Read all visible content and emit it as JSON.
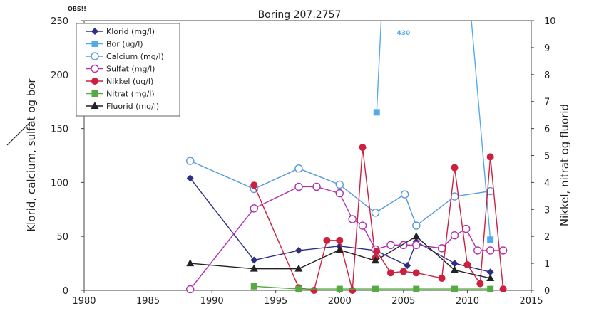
{
  "chart_data": {
    "type": "line",
    "title": "Boring 207.2757",
    "note": "OBS!!",
    "ylabel": "Klorid, calcium, sulfat og bor",
    "y2label": "Nikkel, nitrat og fluorid",
    "xlim": [
      1980,
      2015
    ],
    "ylim": [
      0,
      250
    ],
    "y2lim": [
      0,
      10
    ],
    "xticks": [
      "1980",
      "1985",
      "1990",
      "1995",
      "2000",
      "2005",
      "2010",
      "2015"
    ],
    "yticks": [
      "0",
      "50",
      "100",
      "150",
      "200",
      "250"
    ],
    "y2ticks": [
      "0",
      "1",
      "2",
      "3",
      "4",
      "5",
      "6",
      "7",
      "8",
      "9",
      "10"
    ],
    "grid": false,
    "legend_position": "top-left",
    "annotation": {
      "text": "430",
      "x": 2004.0,
      "y": 242
    },
    "series": [
      {
        "name": "Klorid (mg/l)",
        "axis": "left",
        "color": "#2e2e86",
        "marker": "diamond",
        "x": [
          1988.3,
          1993.3,
          1996.8,
          2000.0,
          2002.8,
          2005.3,
          2006.0,
          2009.0,
          2011.8
        ],
        "y": [
          104,
          28,
          37,
          41,
          37,
          23,
          45,
          25,
          17
        ]
      },
      {
        "name": "Bor (ug/l)",
        "axis": "left",
        "color": "#55aaee",
        "marker": "square",
        "x": [
          2002.9,
          2004.0,
          2009.0,
          2011.8
        ],
        "y": [
          165,
          430,
          430,
          47
        ]
      },
      {
        "name": "Calcium (mg/l)",
        "axis": "left",
        "color": "#5599dd",
        "marker": "circle-open",
        "x": [
          1988.3,
          1993.3,
          1996.8,
          2000.0,
          2002.8,
          2005.1,
          2006.0,
          2009.0,
          2011.8
        ],
        "y": [
          120,
          94,
          113,
          98,
          72,
          89,
          60,
          87,
          92
        ]
      },
      {
        "name": "Sulfat (mg/l)",
        "axis": "left",
        "color": "#b030b0",
        "marker": "circle-open",
        "x": [
          1988.3,
          1993.3,
          1996.8,
          1998.2,
          2000.0,
          2001.0,
          2001.8,
          2002.8,
          2004.0,
          2005.0,
          2006.0,
          2008.0,
          2009.0,
          2009.9,
          2010.8,
          2011.8,
          2012.8
        ],
        "y": [
          1,
          76,
          96,
          96,
          90,
          66,
          60,
          38,
          42,
          42,
          42,
          39,
          51,
          57,
          37,
          37,
          37
        ]
      },
      {
        "name": "Nikkel (ug/l)",
        "axis": "right",
        "color": "#cc2040",
        "marker": "circle",
        "x": [
          1993.3,
          1996.8,
          1998.0,
          1999.0,
          2000.0,
          2001.0,
          2001.8,
          2002.8,
          2002.9,
          2004.0,
          2005.0,
          2006.0,
          2008.0,
          2009.0,
          2010.0,
          2011.0,
          2011.8,
          2012.8
        ],
        "y": [
          3.9,
          0.1,
          0,
          1.85,
          1.85,
          0,
          5.3,
          1.2,
          1.45,
          0.65,
          0.7,
          0.65,
          0.45,
          4.55,
          0.95,
          0.25,
          4.95,
          0.05
        ]
      },
      {
        "name": "Nitrat (mg/l)",
        "axis": "right",
        "color": "#55aa44",
        "marker": "square",
        "x": [
          1993.3,
          1996.8,
          2000.0,
          2002.8,
          2006.0,
          2009.0,
          2011.8
        ],
        "y": [
          0.15,
          0.05,
          0.05,
          0.05,
          0.05,
          0.05,
          0.05
        ]
      },
      {
        "name": "Fluorid (mg/l)",
        "axis": "right",
        "color": "#222222",
        "marker": "triangle",
        "x": [
          1988.3,
          1993.3,
          1996.8,
          2000.0,
          2002.8,
          2006.0,
          2009.0,
          2011.8
        ],
        "y": [
          1.0,
          0.8,
          0.8,
          1.5,
          1.1,
          2.0,
          0.75,
          0.45
        ]
      }
    ]
  }
}
